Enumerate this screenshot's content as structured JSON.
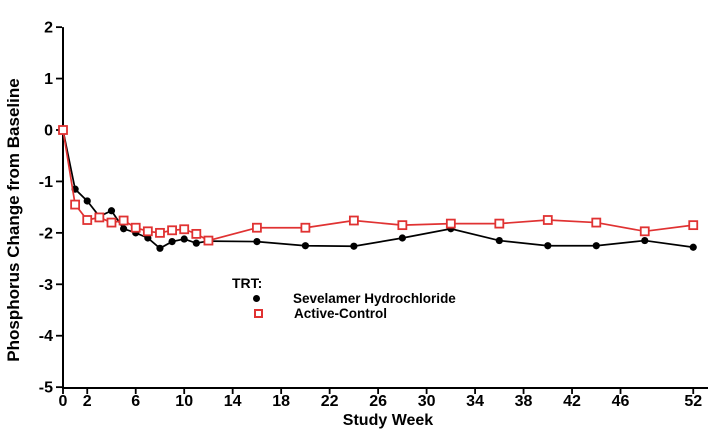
{
  "chart_data": {
    "type": "line",
    "title": "",
    "xlabel": "Study Week",
    "ylabel": "Phosphorus Change from Baseline",
    "x_weeks": [
      0,
      1,
      2,
      3,
      4,
      5,
      6,
      7,
      8,
      9,
      10,
      11,
      12,
      16,
      20,
      24,
      28,
      32,
      36,
      40,
      44,
      48,
      52
    ],
    "series": [
      {
        "name": "Sevelamer Hydrochloride",
        "marker": "filled-circle",
        "color": "#000000",
        "values": [
          0.0,
          -1.15,
          -1.38,
          -1.68,
          -1.57,
          -1.92,
          -2.0,
          -2.1,
          -2.3,
          -2.17,
          -2.12,
          -2.2,
          -2.16,
          -2.17,
          -2.25,
          -2.26,
          -2.1,
          -1.92,
          -2.15,
          -2.25,
          -2.25,
          -2.15,
          -2.28
        ]
      },
      {
        "name": "Active-Control",
        "marker": "open-square",
        "color": "#e03232",
        "values": [
          0.0,
          -1.45,
          -1.75,
          -1.7,
          -1.8,
          -1.76,
          -1.9,
          -1.97,
          -2.0,
          -1.95,
          -1.93,
          -2.02,
          -2.15,
          -1.9,
          -1.9,
          -1.76,
          -1.85,
          -1.82,
          -1.82,
          -1.75,
          -1.8,
          -1.97,
          -1.85
        ]
      }
    ],
    "x_ticks": [
      0,
      2,
      6,
      10,
      14,
      18,
      22,
      26,
      30,
      34,
      38,
      42,
      46,
      52
    ],
    "y_ticks": [
      2,
      1,
      0,
      -1,
      -2,
      -3,
      -4,
      -5
    ],
    "xlim": [
      0,
      53.3
    ],
    "ylim": [
      -5,
      2
    ],
    "grid": "off",
    "legend": {
      "title": "TRT:",
      "position": "inside-bottom-left",
      "entries": [
        "Sevelamer Hydrochloride",
        "Active-Control"
      ]
    }
  }
}
